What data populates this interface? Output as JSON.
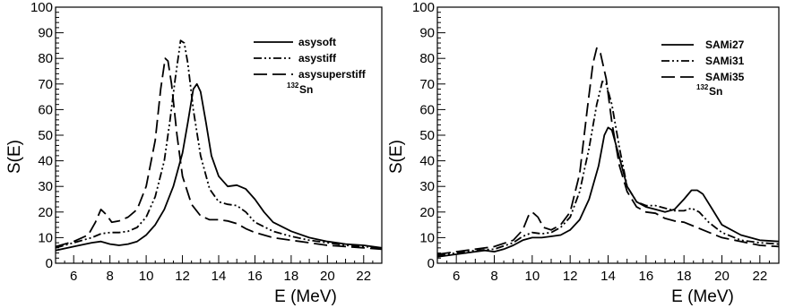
{
  "chart_data": [
    {
      "type": "line",
      "xlabel": "E (MeV)",
      "ylabel": "S(E)",
      "xlim": [
        5,
        23
      ],
      "ylim": [
        0,
        100
      ],
      "x_ticks": [
        6,
        8,
        10,
        12,
        14,
        16,
        18,
        20,
        22
      ],
      "y_ticks": [
        0,
        10,
        20,
        30,
        40,
        50,
        60,
        70,
        80,
        90,
        100
      ],
      "annotation": {
        "mass_number": "132",
        "element": "Sn"
      },
      "legend_position": "top-right",
      "series": [
        {
          "name": "asysoft",
          "style": "solid",
          "points": [
            [
              5,
              5
            ],
            [
              6,
              6.5
            ],
            [
              7,
              8
            ],
            [
              7.5,
              8.5
            ],
            [
              8,
              7.5
            ],
            [
              8.5,
              7
            ],
            [
              9,
              7.5
            ],
            [
              9.5,
              8.5
            ],
            [
              10,
              11
            ],
            [
              10.5,
              15
            ],
            [
              11,
              21
            ],
            [
              11.5,
              30
            ],
            [
              12,
              43
            ],
            [
              12.3,
              55
            ],
            [
              12.6,
              68
            ],
            [
              12.8,
              70
            ],
            [
              13,
              67
            ],
            [
              13.3,
              55
            ],
            [
              13.6,
              42
            ],
            [
              14,
              34
            ],
            [
              14.5,
              30
            ],
            [
              15,
              30.5
            ],
            [
              15.5,
              29
            ],
            [
              16,
              25
            ],
            [
              16.5,
              20
            ],
            [
              17,
              16
            ],
            [
              18,
              12.5
            ],
            [
              19,
              10
            ],
            [
              20,
              8.5
            ],
            [
              21,
              7.5
            ],
            [
              22,
              7
            ],
            [
              23,
              6
            ]
          ]
        },
        {
          "name": "asystiff",
          "style": "dashdotdot",
          "points": [
            [
              5,
              6
            ],
            [
              6,
              8
            ],
            [
              7,
              10
            ],
            [
              7.5,
              11.5
            ],
            [
              8,
              12
            ],
            [
              8.5,
              12
            ],
            [
              9,
              12.5
            ],
            [
              9.5,
              14
            ],
            [
              10,
              18
            ],
            [
              10.5,
              26
            ],
            [
              11,
              40
            ],
            [
              11.3,
              55
            ],
            [
              11.6,
              72
            ],
            [
              11.9,
              87
            ],
            [
              12.1,
              86
            ],
            [
              12.3,
              78
            ],
            [
              12.6,
              60
            ],
            [
              13,
              42
            ],
            [
              13.5,
              29
            ],
            [
              14,
              24
            ],
            [
              14.5,
              23
            ],
            [
              15,
              22.5
            ],
            [
              15.5,
              20
            ],
            [
              16,
              16
            ],
            [
              17,
              12.5
            ],
            [
              18,
              10.5
            ],
            [
              19,
              9
            ],
            [
              20,
              8
            ],
            [
              21,
              7
            ],
            [
              22,
              6.5
            ],
            [
              23,
              6
            ]
          ]
        },
        {
          "name": "asysuperstiff",
          "style": "longdash",
          "points": [
            [
              5,
              6.5
            ],
            [
              6,
              8.5
            ],
            [
              6.8,
              11
            ],
            [
              7.2,
              16
            ],
            [
              7.5,
              21
            ],
            [
              7.8,
              19
            ],
            [
              8.1,
              16
            ],
            [
              8.5,
              16.5
            ],
            [
              9,
              18
            ],
            [
              9.5,
              21
            ],
            [
              10,
              30
            ],
            [
              10.5,
              48
            ],
            [
              10.8,
              68
            ],
            [
              11.05,
              80
            ],
            [
              11.2,
              79
            ],
            [
              11.4,
              70
            ],
            [
              11.7,
              50
            ],
            [
              12,
              34
            ],
            [
              12.5,
              23
            ],
            [
              13,
              18.5
            ],
            [
              13.5,
              17
            ],
            [
              14,
              17
            ],
            [
              14.5,
              16.5
            ],
            [
              15,
              15.5
            ],
            [
              15.5,
              13.5
            ],
            [
              16,
              12
            ],
            [
              17,
              10
            ],
            [
              18,
              9
            ],
            [
              19,
              8
            ],
            [
              20,
              7
            ],
            [
              21,
              6.5
            ],
            [
              22,
              6
            ],
            [
              23,
              5.5
            ]
          ]
        }
      ]
    },
    {
      "type": "line",
      "xlabel": "E (MeV)",
      "ylabel": "S(E)",
      "xlim": [
        5,
        23
      ],
      "ylim": [
        0,
        100
      ],
      "x_ticks": [
        6,
        8,
        10,
        12,
        14,
        16,
        18,
        20,
        22
      ],
      "y_ticks": [
        0,
        10,
        20,
        30,
        40,
        50,
        60,
        70,
        80,
        90,
        100
      ],
      "annotation": {
        "mass_number": "132",
        "element": "Sn"
      },
      "legend_position": "top-right",
      "series": [
        {
          "name": "SAMi27",
          "style": "solid",
          "points": [
            [
              5,
              2.5
            ],
            [
              6,
              3.5
            ],
            [
              7,
              4.5
            ],
            [
              7.5,
              5
            ],
            [
              8,
              4.5
            ],
            [
              8.5,
              5.5
            ],
            [
              9,
              7
            ],
            [
              9.5,
              9
            ],
            [
              10,
              10
            ],
            [
              10.5,
              10
            ],
            [
              11,
              10.5
            ],
            [
              11.5,
              11
            ],
            [
              12,
              13
            ],
            [
              12.5,
              17
            ],
            [
              13,
              25
            ],
            [
              13.5,
              38
            ],
            [
              13.8,
              50
            ],
            [
              14,
              53
            ],
            [
              14.2,
              52
            ],
            [
              14.5,
              44
            ],
            [
              15,
              30
            ],
            [
              15.5,
              24
            ],
            [
              16,
              22
            ],
            [
              16.5,
              21
            ],
            [
              17,
              20
            ],
            [
              17.5,
              21
            ],
            [
              18,
              25
            ],
            [
              18.4,
              28.5
            ],
            [
              18.7,
              28.5
            ],
            [
              19,
              27
            ],
            [
              19.5,
              21
            ],
            [
              20,
              15
            ],
            [
              21,
              11
            ],
            [
              22,
              9
            ],
            [
              23,
              8.5
            ]
          ]
        },
        {
          "name": "SAMi31",
          "style": "dashdotdot",
          "points": [
            [
              5,
              3
            ],
            [
              6,
              4
            ],
            [
              7,
              5
            ],
            [
              8,
              5.5
            ],
            [
              9,
              8
            ],
            [
              9.5,
              10.5
            ],
            [
              10,
              12
            ],
            [
              10.5,
              11.5
            ],
            [
              11,
              12
            ],
            [
              11.5,
              14
            ],
            [
              12,
              18
            ],
            [
              12.5,
              28
            ],
            [
              13,
              45
            ],
            [
              13.4,
              62
            ],
            [
              13.7,
              71
            ],
            [
              13.9,
              70
            ],
            [
              14.2,
              62
            ],
            [
              14.6,
              45
            ],
            [
              15,
              30
            ],
            [
              15.5,
              24
            ],
            [
              16,
              22.5
            ],
            [
              16.5,
              22.5
            ],
            [
              17,
              21.5
            ],
            [
              17.5,
              20.5
            ],
            [
              18,
              20.5
            ],
            [
              18.4,
              21.5
            ],
            [
              18.8,
              20
            ],
            [
              19.3,
              16
            ],
            [
              20,
              12
            ],
            [
              21,
              9
            ],
            [
              22,
              8
            ],
            [
              23,
              7.5
            ]
          ]
        },
        {
          "name": "SAMi35",
          "style": "longdash",
          "points": [
            [
              5,
              3.5
            ],
            [
              6,
              4.5
            ],
            [
              7,
              5.5
            ],
            [
              8,
              6.5
            ],
            [
              9,
              9
            ],
            [
              9.5,
              13
            ],
            [
              9.8,
              18.5
            ],
            [
              10,
              20
            ],
            [
              10.3,
              18
            ],
            [
              10.6,
              14
            ],
            [
              11,
              13
            ],
            [
              11.5,
              15
            ],
            [
              12,
              20
            ],
            [
              12.5,
              35
            ],
            [
              12.9,
              60
            ],
            [
              13.2,
              78
            ],
            [
              13.4,
              84
            ],
            [
              13.6,
              82
            ],
            [
              13.9,
              72
            ],
            [
              14.2,
              55
            ],
            [
              14.6,
              38
            ],
            [
              15,
              28
            ],
            [
              15.5,
              22
            ],
            [
              16,
              20
            ],
            [
              16.5,
              19.5
            ],
            [
              17,
              17.5
            ],
            [
              17.5,
              16.5
            ],
            [
              18,
              16
            ],
            [
              18.5,
              14.5
            ],
            [
              19,
              13
            ],
            [
              20,
              10
            ],
            [
              21,
              8.5
            ],
            [
              22,
              7
            ],
            [
              23,
              6.5
            ]
          ]
        }
      ]
    }
  ]
}
